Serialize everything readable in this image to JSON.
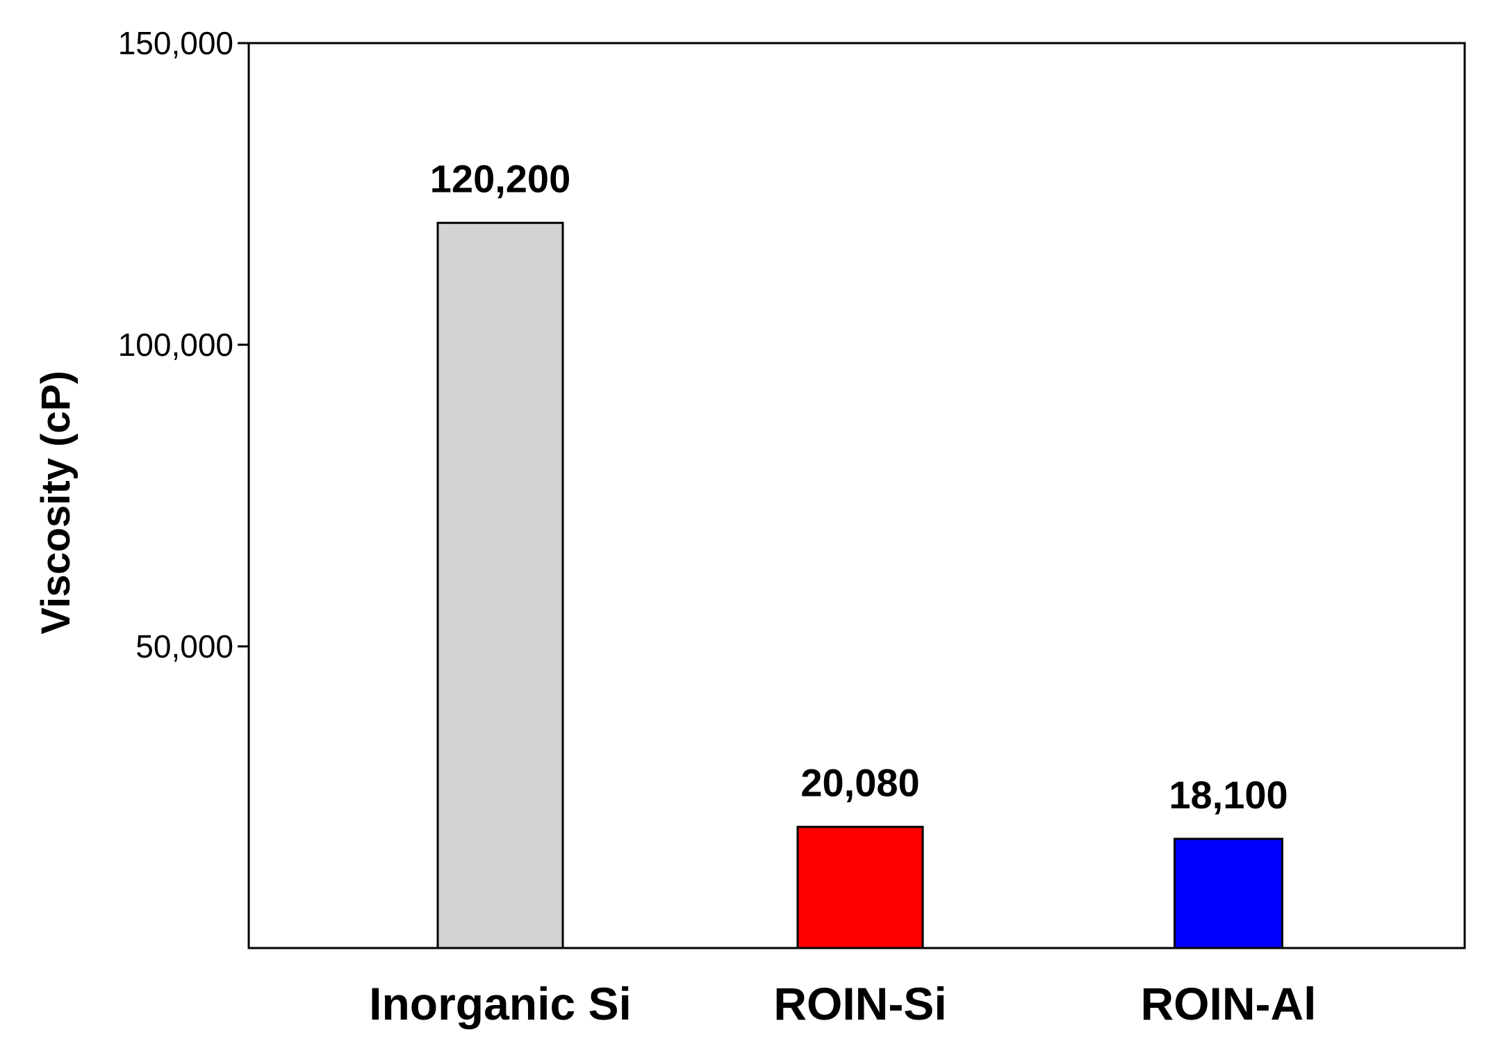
{
  "chart_data": {
    "type": "bar",
    "title": "",
    "xlabel": "",
    "ylabel": "Viscosity (cP)",
    "ylim": [
      0,
      150000
    ],
    "yticks": [
      50000,
      100000,
      150000
    ],
    "ytick_labels": [
      "50,000",
      "100,000",
      "150,000"
    ],
    "grid": false,
    "legend": "none",
    "categories": [
      "Inorganic Si",
      "ROIN-Si",
      "ROIN-Al"
    ],
    "values": [
      120200,
      20080,
      18100
    ],
    "data_labels": [
      "120,200",
      "20,080",
      "18,100"
    ],
    "colors": [
      "#d3d3d3",
      "#ff0000",
      "#0000ff"
    ]
  }
}
